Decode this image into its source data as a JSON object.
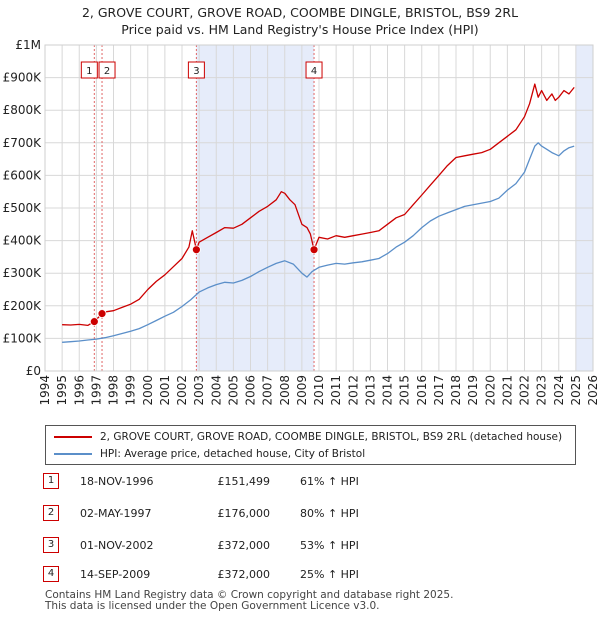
{
  "title_line1": "2, GROVE COURT, GROVE ROAD, COOMBE DINGLE, BRISTOL, BS9 2RL",
  "title_line2": "Price paid vs. HM Land Registry's House Price Index (HPI)",
  "chart_data": {
    "type": "line",
    "title": "2, GROVE COURT, GROVE ROAD, COOMBE DINGLE, BRISTOL, BS9 2RL",
    "subtitle": "Price paid vs. HM Land Registry's House Price Index (HPI)",
    "xlim": [
      1994,
      2026
    ],
    "ylim": [
      0,
      1000000
    ],
    "x_ticks": [
      "1994",
      "1995",
      "1996",
      "1997",
      "1998",
      "1999",
      "2000",
      "2001",
      "2002",
      "2003",
      "2004",
      "2005",
      "2006",
      "2007",
      "2008",
      "2009",
      "2010",
      "2011",
      "2012",
      "2013",
      "2014",
      "2015",
      "2016",
      "2017",
      "2018",
      "2019",
      "2020",
      "2021",
      "2022",
      "2023",
      "2024",
      "2025",
      "2026"
    ],
    "y_ticks": [
      {
        "value": 0,
        "label": "£0"
      },
      {
        "value": 100000,
        "label": "£100K"
      },
      {
        "value": 200000,
        "label": "£200K"
      },
      {
        "value": 300000,
        "label": "£300K"
      },
      {
        "value": 400000,
        "label": "£400K"
      },
      {
        "value": 500000,
        "label": "£500K"
      },
      {
        "value": 600000,
        "label": "£600K"
      },
      {
        "value": 700000,
        "label": "£700K"
      },
      {
        "value": 800000,
        "label": "£800K"
      },
      {
        "value": 900000,
        "label": "£900K"
      },
      {
        "value": 1000000,
        "label": "£1M"
      }
    ],
    "grid": true,
    "shaded_ranges": [
      [
        2002.84,
        2009.71
      ],
      [
        2025.0,
        2026.0
      ]
    ],
    "series": [
      {
        "name": "2, GROVE COURT, GROVE ROAD, COOMBE DINGLE, BRISTOL, BS9 2RL (detached house)",
        "color": "#cc0000",
        "x": [
          1995.0,
          1995.5,
          1996.0,
          1996.5,
          1996.88,
          1997.0,
          1997.33,
          1997.6,
          1998.0,
          1998.5,
          1999.0,
          1999.5,
          2000.0,
          2000.5,
          2001.0,
          2001.5,
          2002.0,
          2002.4,
          2002.6,
          2002.84,
          2003.0,
          2003.5,
          2004.0,
          2004.5,
          2005.0,
          2005.5,
          2006.0,
          2006.5,
          2007.0,
          2007.5,
          2007.8,
          2008.0,
          2008.3,
          2008.6,
          2009.0,
          2009.3,
          2009.5,
          2009.71,
          2010.0,
          2010.5,
          2011.0,
          2011.5,
          2012.0,
          2012.5,
          2013.0,
          2013.5,
          2014.0,
          2014.5,
          2015.0,
          2015.5,
          2016.0,
          2016.5,
          2017.0,
          2017.5,
          2018.0,
          2018.5,
          2019.0,
          2019.5,
          2020.0,
          2020.5,
          2021.0,
          2021.5,
          2022.0,
          2022.3,
          2022.6,
          2022.8,
          2023.0,
          2023.3,
          2023.6,
          2023.8,
          2024.0,
          2024.3,
          2024.6,
          2024.9
        ],
        "values": [
          142000,
          141000,
          143000,
          140000,
          151499,
          158000,
          176000,
          182000,
          185000,
          195000,
          205000,
          220000,
          250000,
          275000,
          295000,
          320000,
          345000,
          380000,
          430000,
          372000,
          395000,
          410000,
          425000,
          440000,
          438000,
          450000,
          470000,
          490000,
          505000,
          525000,
          550000,
          545000,
          525000,
          510000,
          450000,
          440000,
          420000,
          372000,
          410000,
          405000,
          415000,
          410000,
          415000,
          420000,
          425000,
          430000,
          450000,
          470000,
          480000,
          510000,
          540000,
          570000,
          600000,
          630000,
          655000,
          660000,
          665000,
          670000,
          680000,
          700000,
          720000,
          740000,
          780000,
          820000,
          880000,
          840000,
          860000,
          830000,
          850000,
          830000,
          840000,
          860000,
          850000,
          870000
        ]
      },
      {
        "name": "HPI: Average price, detached house, City of Bristol",
        "color": "#5b8fc9",
        "x": [
          1995.0,
          1995.5,
          1996.0,
          1996.5,
          1997.0,
          1997.5,
          1998.0,
          1998.5,
          1999.0,
          1999.5,
          2000.0,
          2000.5,
          2001.0,
          2001.5,
          2002.0,
          2002.5,
          2003.0,
          2003.5,
          2004.0,
          2004.5,
          2005.0,
          2005.5,
          2006.0,
          2006.5,
          2007.0,
          2007.5,
          2008.0,
          2008.5,
          2009.0,
          2009.3,
          2009.6,
          2010.0,
          2010.5,
          2011.0,
          2011.5,
          2012.0,
          2012.5,
          2013.0,
          2013.5,
          2014.0,
          2014.5,
          2015.0,
          2015.5,
          2016.0,
          2016.5,
          2017.0,
          2017.5,
          2018.0,
          2018.5,
          2019.0,
          2019.5,
          2020.0,
          2020.5,
          2021.0,
          2021.5,
          2022.0,
          2022.3,
          2022.6,
          2022.8,
          2023.0,
          2023.3,
          2023.6,
          2023.8,
          2024.0,
          2024.3,
          2024.6,
          2024.9
        ],
        "values": [
          88000,
          90000,
          92000,
          95000,
          98000,
          102000,
          108000,
          115000,
          122000,
          130000,
          142000,
          155000,
          168000,
          180000,
          198000,
          218000,
          242000,
          255000,
          265000,
          272000,
          270000,
          278000,
          290000,
          305000,
          318000,
          330000,
          338000,
          328000,
          300000,
          288000,
          305000,
          318000,
          325000,
          330000,
          328000,
          332000,
          335000,
          340000,
          345000,
          360000,
          380000,
          395000,
          415000,
          440000,
          460000,
          475000,
          485000,
          495000,
          505000,
          510000,
          515000,
          520000,
          530000,
          555000,
          575000,
          610000,
          650000,
          690000,
          700000,
          690000,
          680000,
          670000,
          665000,
          660000,
          675000,
          685000,
          690000
        ]
      }
    ],
    "sales": [
      {
        "label": "1",
        "date": "18-NOV-1996",
        "x": 1996.88,
        "price": 151499,
        "price_text": "£151,499",
        "hpi_text": "61% ↑ HPI"
      },
      {
        "label": "2",
        "date": "02-MAY-1997",
        "x": 1997.33,
        "price": 176000,
        "price_text": "£176,000",
        "hpi_text": "80% ↑ HPI"
      },
      {
        "label": "3",
        "date": "01-NOV-2002",
        "x": 2002.84,
        "price": 372000,
        "price_text": "£372,000",
        "hpi_text": "53% ↑ HPI"
      },
      {
        "label": "4",
        "date": "14-SEP-2009",
        "x": 2009.71,
        "price": 372000,
        "price_text": "£372,000",
        "hpi_text": "25% ↑ HPI"
      }
    ],
    "legend": {
      "position": "below",
      "entries": [
        "2, GROVE COURT, GROVE ROAD, COOMBE DINGLE, BRISTOL, BS9 2RL (detached house)",
        "HPI: Average price, detached house, City of Bristol"
      ]
    }
  },
  "footer_line1": "Contains HM Land Registry data © Crown copyright and database right 2025.",
  "footer_line2": "This data is licensed under the Open Government Licence v3.0."
}
